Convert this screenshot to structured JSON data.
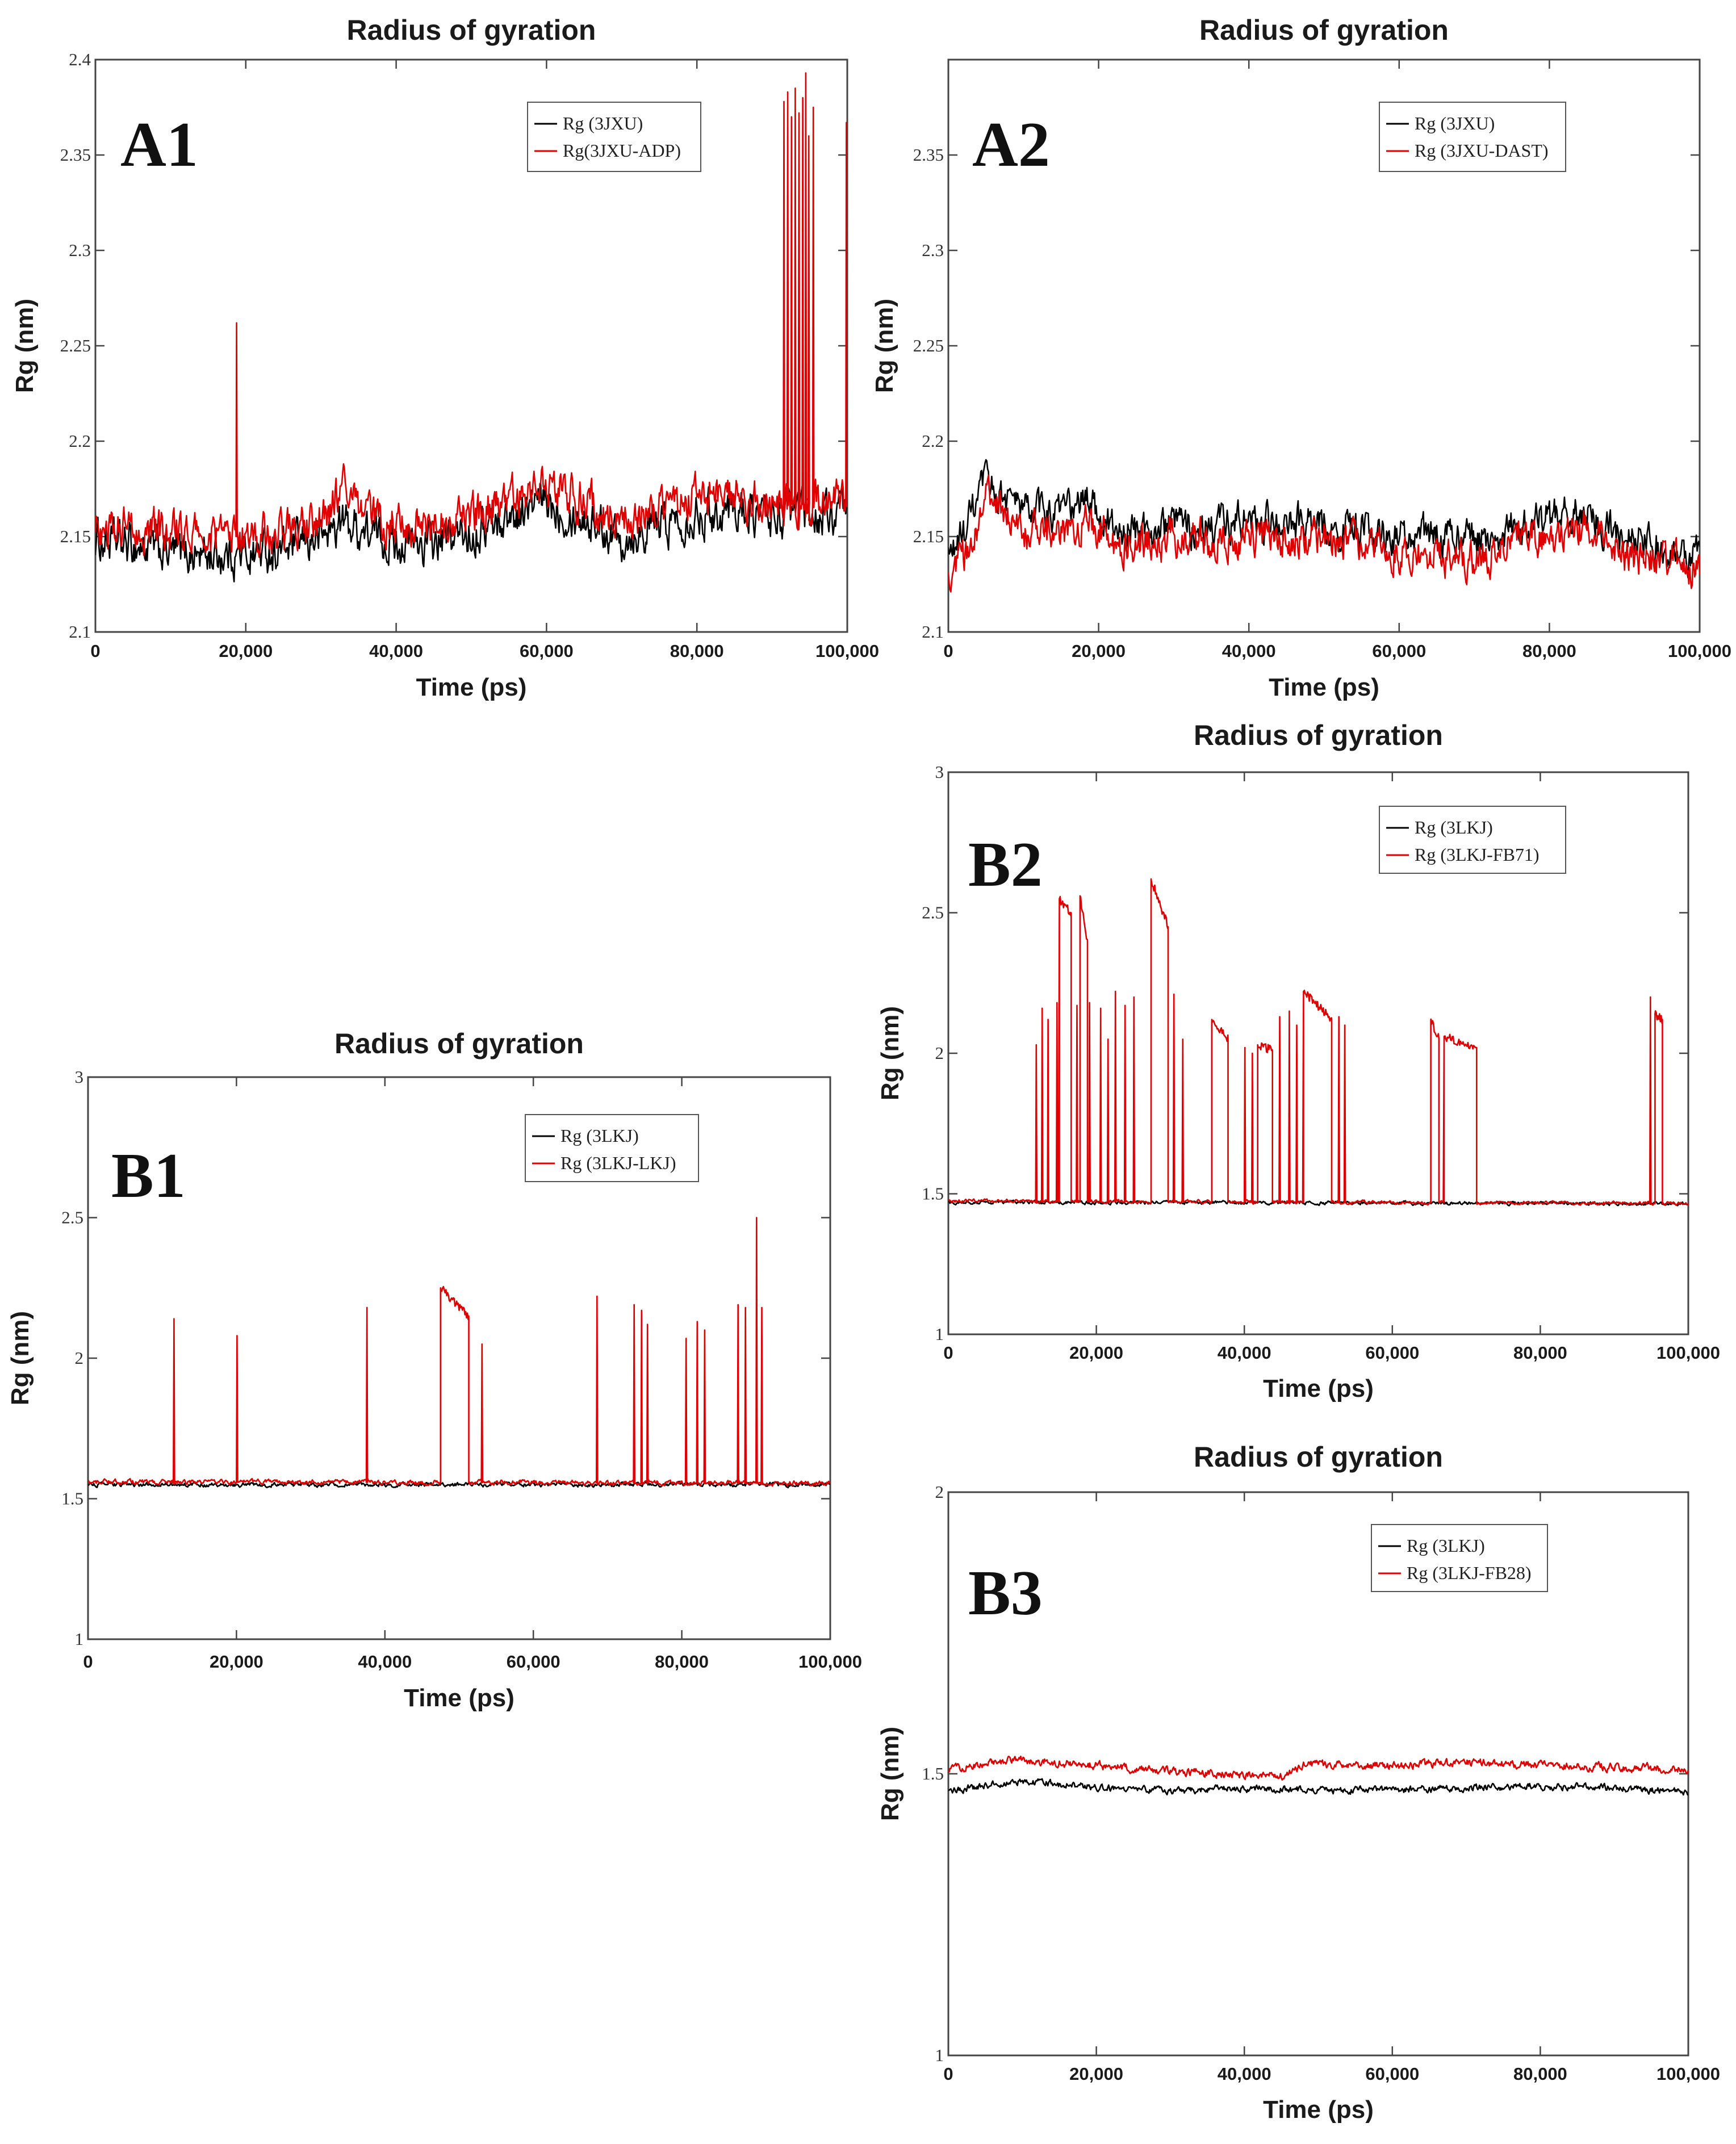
{
  "chart_data": [
    {
      "type": "line",
      "panel_label": "A1",
      "title": "Radius of gyration",
      "xlabel": "Time (ps)",
      "ylabel": "Rg (nm)",
      "xlim": [
        0,
        100000
      ],
      "ylim": [
        2.1,
        2.4
      ],
      "xticks": [
        "0",
        "20,000",
        "40,000",
        "60,000",
        "80,000",
        "100,000"
      ],
      "yticks": [
        "2.1",
        "2.15",
        "2.2",
        "2.25",
        "2.3",
        "2.35",
        "2.4"
      ],
      "legend_position": "top-right",
      "series": [
        {
          "name": "Rg (3JXU)",
          "color": "#000000",
          "x": [
            0,
            5000,
            10000,
            15000,
            20000,
            25000,
            30000,
            33000,
            36000,
            40000,
            45000,
            50000,
            55000,
            60000,
            65000,
            70000,
            75000,
            80000,
            85000,
            90000,
            95000,
            100000
          ],
          "values": [
            2.148,
            2.145,
            2.142,
            2.14,
            2.141,
            2.143,
            2.15,
            2.158,
            2.152,
            2.147,
            2.146,
            2.152,
            2.16,
            2.168,
            2.16,
            2.15,
            2.156,
            2.162,
            2.165,
            2.16,
            2.162,
            2.16
          ],
          "noise": 0.009,
          "spikes": []
        },
        {
          "name": "Rg(3JXU-ADP)",
          "color": "#e00000",
          "x": [
            0,
            5000,
            10000,
            15000,
            20000,
            25000,
            30000,
            33000,
            36000,
            40000,
            45000,
            50000,
            55000,
            60000,
            65000,
            70000,
            75000,
            80000,
            85000,
            90000,
            95000,
            100000
          ],
          "values": [
            2.155,
            2.155,
            2.152,
            2.15,
            2.15,
            2.152,
            2.158,
            2.175,
            2.16,
            2.156,
            2.154,
            2.16,
            2.168,
            2.178,
            2.168,
            2.158,
            2.164,
            2.17,
            2.172,
            2.166,
            2.168,
            2.168
          ],
          "noise": 0.009,
          "spikes": [
            {
              "x": 18700,
              "y": 2.262
            },
            {
              "x": 91500,
              "y": 2.378
            },
            {
              "x": 92000,
              "y": 2.383
            },
            {
              "x": 92500,
              "y": 2.37
            },
            {
              "x": 93000,
              "y": 2.385
            },
            {
              "x": 93500,
              "y": 2.372
            },
            {
              "x": 94000,
              "y": 2.38
            },
            {
              "x": 94400,
              "y": 2.393
            },
            {
              "x": 94800,
              "y": 2.36
            },
            {
              "x": 95400,
              "y": 2.375
            },
            {
              "x": 99800,
              "y": 2.367
            }
          ]
        }
      ]
    },
    {
      "type": "line",
      "panel_label": "A2",
      "title": "Radius of gyration",
      "xlabel": "Time (ps)",
      "ylabel": "Rg (nm)",
      "xlim": [
        0,
        100000
      ],
      "ylim": [
        2.1,
        2.4
      ],
      "xticks": [
        "0",
        "20,000",
        "40,000",
        "60,000",
        "80,000",
        "100,000"
      ],
      "yticks": [
        "2.1",
        "2.15",
        "2.2",
        "2.25",
        "2.3",
        "2.35"
      ],
      "legend_position": "top-right",
      "series": [
        {
          "name": "Rg (3JXU)",
          "color": "#000000",
          "x": [
            0,
            2500,
            5000,
            10000,
            15000,
            19000,
            22000,
            30000,
            40000,
            50000,
            60000,
            65000,
            70000,
            75000,
            80000,
            85000,
            90000,
            95000,
            100000
          ],
          "values": [
            2.138,
            2.155,
            2.178,
            2.164,
            2.162,
            2.17,
            2.152,
            2.155,
            2.158,
            2.155,
            2.15,
            2.15,
            2.148,
            2.155,
            2.16,
            2.162,
            2.148,
            2.145,
            2.14
          ],
          "noise": 0.008,
          "spikes": []
        },
        {
          "name": "Rg (3JXU-DAST)",
          "color": "#e00000",
          "x": [
            0,
            2500,
            5000,
            10000,
            15000,
            19000,
            22000,
            30000,
            40000,
            50000,
            60000,
            65000,
            70000,
            75000,
            80000,
            85000,
            90000,
            95000,
            100000
          ],
          "values": [
            2.125,
            2.142,
            2.17,
            2.152,
            2.15,
            2.158,
            2.145,
            2.148,
            2.15,
            2.148,
            2.142,
            2.14,
            2.138,
            2.145,
            2.15,
            2.155,
            2.14,
            2.138,
            2.132
          ],
          "noise": 0.008,
          "spikes": []
        }
      ]
    },
    {
      "type": "line",
      "panel_label": "B1",
      "title": "Radius of gyration",
      "xlabel": "Time (ps)",
      "ylabel": "Rg (nm)",
      "xlim": [
        0,
        100000
      ],
      "ylim": [
        1,
        3
      ],
      "xticks": [
        "0",
        "20,000",
        "40,000",
        "60,000",
        "80,000",
        "100,000"
      ],
      "yticks": [
        "1",
        "1.5",
        "2",
        "2.5",
        "3"
      ],
      "legend_position": "top-right",
      "series": [
        {
          "name": "Rg (3LKJ)",
          "color": "#000000",
          "x": [
            0,
            100000
          ],
          "values": [
            1.55,
            1.55
          ],
          "noise": 0.006,
          "spikes": []
        },
        {
          "name": "Rg (3LKJ-LKJ)",
          "color": "#e00000",
          "x": [
            0,
            100000
          ],
          "values": [
            1.56,
            1.555
          ],
          "noise": 0.007,
          "spikes": [
            {
              "x": 11500,
              "y": 2.14
            },
            {
              "x": 20000,
              "y": 2.08
            },
            {
              "x": 37500,
              "y": 2.18
            },
            {
              "x": 53000,
              "y": 2.05
            },
            {
              "x": 68500,
              "y": 2.22
            },
            {
              "x": 73500,
              "y": 2.19
            },
            {
              "x": 74500,
              "y": 2.17
            },
            {
              "x": 75300,
              "y": 2.12
            },
            {
              "x": 80500,
              "y": 2.07
            },
            {
              "x": 82000,
              "y": 2.13
            },
            {
              "x": 83000,
              "y": 2.1
            },
            {
              "x": 87500,
              "y": 2.19
            },
            {
              "x": 88500,
              "y": 2.18
            },
            {
              "x": 90000,
              "y": 2.5
            },
            {
              "x": 90700,
              "y": 2.18
            }
          ],
          "plateaus": [
            {
              "x0": 47500,
              "x1": 51300,
              "y0": 2.25,
              "y1": 2.15
            }
          ]
        }
      ]
    },
    {
      "type": "line",
      "panel_label": "B2",
      "title": "Radius of gyration",
      "xlabel": "Time (ps)",
      "ylabel": "Rg (nm)",
      "xlim": [
        0,
        100000
      ],
      "ylim": [
        1,
        3
      ],
      "xticks": [
        "0",
        "20,000",
        "40,000",
        "60,000",
        "80,000",
        "100,000"
      ],
      "yticks": [
        "1",
        "1.5",
        "2",
        "2.5",
        "3"
      ],
      "legend_position": "top-right",
      "series": [
        {
          "name": "Rg (3LKJ)",
          "color": "#000000",
          "x": [
            0,
            100000
          ],
          "values": [
            1.47,
            1.465
          ],
          "noise": 0.005,
          "spikes": []
        },
        {
          "name": "Rg (3LKJ-FB71)",
          "color": "#e00000",
          "x": [
            0,
            100000
          ],
          "values": [
            1.475,
            1.465
          ],
          "noise": 0.005,
          "spikes": [
            {
              "x": 11800,
              "y": 2.03
            },
            {
              "x": 12600,
              "y": 2.16
            },
            {
              "x": 13400,
              "y": 2.12
            },
            {
              "x": 14600,
              "y": 2.18
            },
            {
              "x": 17300,
              "y": 2.17
            },
            {
              "x": 19000,
              "y": 2.18
            },
            {
              "x": 20500,
              "y": 2.16
            },
            {
              "x": 21500,
              "y": 2.05
            },
            {
              "x": 22500,
              "y": 2.22
            },
            {
              "x": 23800,
              "y": 2.17
            },
            {
              "x": 25000,
              "y": 2.2
            },
            {
              "x": 30400,
              "y": 2.21
            },
            {
              "x": 31600,
              "y": 2.05
            },
            {
              "x": 40000,
              "y": 2.02
            },
            {
              "x": 41000,
              "y": 2.0
            },
            {
              "x": 44700,
              "y": 2.13
            },
            {
              "x": 46000,
              "y": 2.15
            },
            {
              "x": 47000,
              "y": 2.1
            },
            {
              "x": 52700,
              "y": 2.13
            },
            {
              "x": 53500,
              "y": 2.1
            },
            {
              "x": 94800,
              "y": 2.2
            }
          ],
          "plateaus": [
            {
              "x0": 15000,
              "x1": 16600,
              "y0": 2.55,
              "y1": 2.5
            },
            {
              "x0": 17800,
              "x1": 18800,
              "y0": 2.56,
              "y1": 2.4
            },
            {
              "x0": 27400,
              "x1": 29700,
              "y0": 2.62,
              "y1": 2.45
            },
            {
              "x0": 35600,
              "x1": 37800,
              "y0": 2.12,
              "y1": 2.05
            },
            {
              "x0": 41800,
              "x1": 43800,
              "y0": 2.03,
              "y1": 2.01
            },
            {
              "x0": 48000,
              "x1": 51800,
              "y0": 2.22,
              "y1": 2.12
            },
            {
              "x0": 65200,
              "x1": 66300,
              "y0": 2.12,
              "y1": 2.05
            },
            {
              "x0": 67000,
              "x1": 71400,
              "y0": 2.06,
              "y1": 2.02
            },
            {
              "x0": 95500,
              "x1": 96500,
              "y0": 2.14,
              "y1": 2.12
            }
          ]
        }
      ]
    },
    {
      "type": "line",
      "panel_label": "B3",
      "title": "Radius of gyration",
      "xlabel": "Time (ps)",
      "ylabel": "Rg (nm)",
      "xlim": [
        0,
        100000
      ],
      "ylim": [
        1,
        2
      ],
      "xticks": [
        "0",
        "20,000",
        "40,000",
        "60,000",
        "80,000",
        "100,000"
      ],
      "yticks": [
        "1",
        "1.5",
        "2"
      ],
      "legend_position": "top-right",
      "series": [
        {
          "name": "Rg (3LKJ)",
          "color": "#000000",
          "x": [
            0,
            10000,
            20000,
            30000,
            40000,
            50000,
            60000,
            70000,
            80000,
            90000,
            100000
          ],
          "values": [
            1.47,
            1.487,
            1.476,
            1.47,
            1.474,
            1.47,
            1.472,
            1.475,
            1.478,
            1.475,
            1.468
          ],
          "noise": 0.005,
          "spikes": []
        },
        {
          "name": "Rg (3LKJ-FB28)",
          "color": "#e00000",
          "x": [
            0,
            10000,
            20000,
            30000,
            40000,
            45000,
            48000,
            60000,
            70000,
            80000,
            90000,
            100000
          ],
          "values": [
            1.51,
            1.525,
            1.515,
            1.505,
            1.498,
            1.495,
            1.515,
            1.515,
            1.52,
            1.515,
            1.512,
            1.508
          ],
          "noise": 0.006,
          "spikes": []
        }
      ]
    }
  ]
}
